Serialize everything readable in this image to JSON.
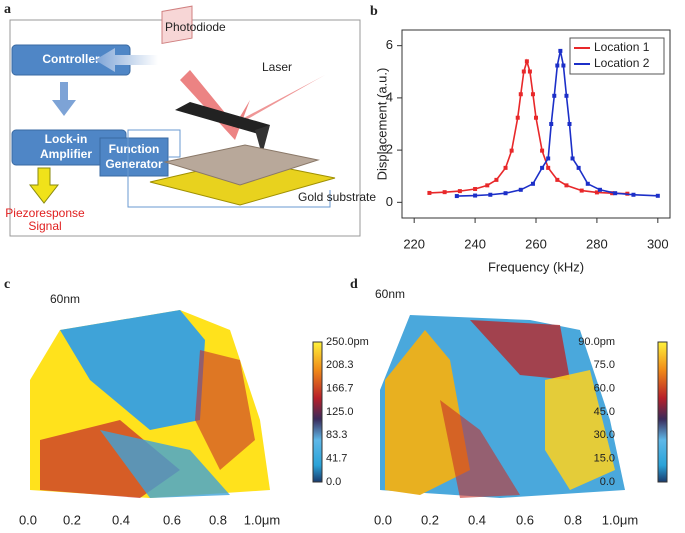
{
  "diagram": {
    "label": "a",
    "nodes": {
      "controller": "Controller",
      "lockin": [
        "Lock-in",
        "Amplifier"
      ],
      "generator": [
        "Function",
        "Generator"
      ],
      "photodiode": "Photodiode",
      "laser": "Laser",
      "substrate": "Gold substrate",
      "signal": [
        "Piezoresponse",
        "Signal"
      ]
    }
  },
  "chart_data": {
    "type": "line",
    "label": "b",
    "xlabel": "Frequency (kHz)",
    "ylabel": "Displacement (a.u.)",
    "xlim": [
      216,
      304
    ],
    "xticks": [
      220,
      240,
      260,
      280,
      300
    ],
    "ylim": [
      -0.6,
      6.6
    ],
    "yticks": [
      0,
      2,
      4,
      6
    ],
    "legend": "upper right",
    "series": [
      {
        "name": "Location 1",
        "color": "#e8282a",
        "x": [
          225,
          230,
          235,
          240,
          244,
          247,
          250,
          252,
          254,
          255,
          256,
          257,
          258,
          259,
          260,
          262,
          264,
          267,
          270,
          275,
          280,
          285,
          290
        ],
        "values": [
          0.36,
          0.39,
          0.43,
          0.51,
          0.65,
          0.86,
          1.32,
          1.98,
          3.24,
          4.14,
          5.01,
          5.4,
          5.01,
          4.14,
          3.24,
          1.98,
          1.32,
          0.86,
          0.65,
          0.45,
          0.38,
          0.35,
          0.33
        ]
      },
      {
        "name": "Location 2",
        "color": "#1c2fc8",
        "x": [
          234,
          240,
          245,
          250,
          255,
          259,
          262,
          264,
          265,
          266,
          267,
          268,
          269,
          270,
          271,
          272,
          274,
          277,
          281,
          286,
          292,
          300
        ],
        "values": [
          0.24,
          0.26,
          0.29,
          0.35,
          0.48,
          0.71,
          1.32,
          1.68,
          3.0,
          4.08,
          5.24,
          5.8,
          5.24,
          4.08,
          3.0,
          1.68,
          1.32,
          0.71,
          0.48,
          0.35,
          0.29,
          0.25
        ]
      }
    ]
  },
  "images": [
    {
      "label": "c",
      "height": "60nm",
      "colorbar": [
        "250.0pm",
        "208.3",
        "166.7",
        "125.0",
        "83.3",
        "41.7",
        "0.0"
      ],
      "xticks": [
        "0.0",
        "0.2",
        "0.4",
        "0.6",
        "0.8",
        "1.0μm"
      ]
    },
    {
      "label": "d",
      "height": "60nm",
      "colorbar": [
        "90.0pm",
        "75.0",
        "60.0",
        "45.0",
        "30.0",
        "15.0",
        "0.0"
      ],
      "xticks": [
        "0.0",
        "0.2",
        "0.4",
        "0.6",
        "0.8",
        "1.0μm"
      ]
    }
  ]
}
